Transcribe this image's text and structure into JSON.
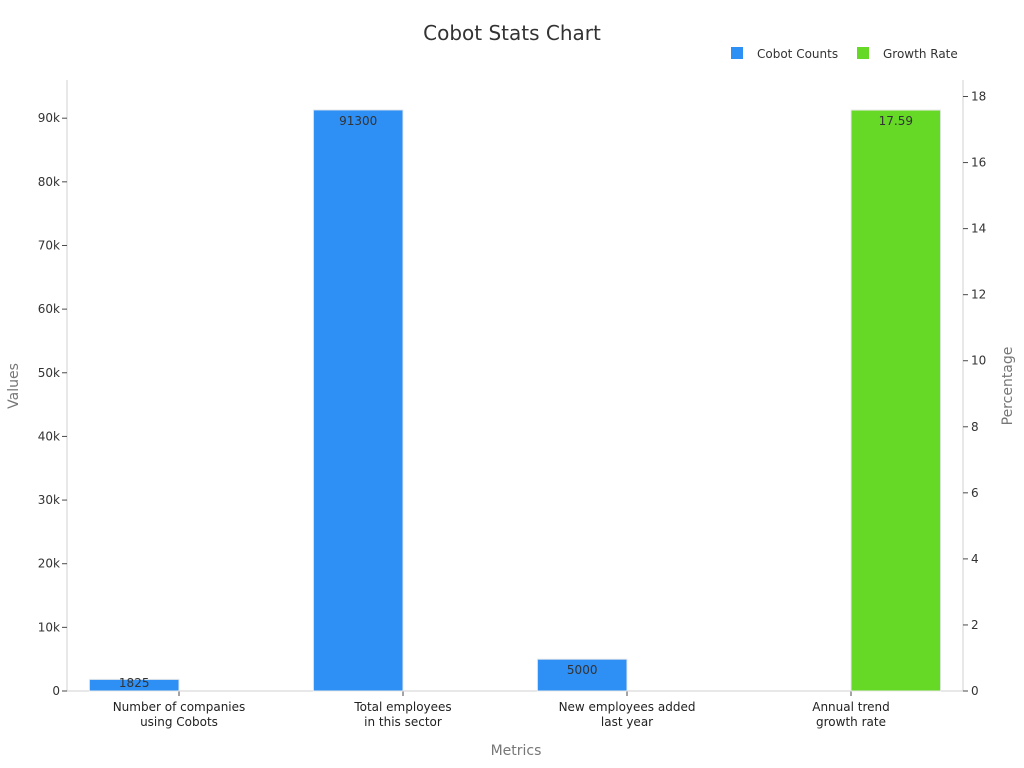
{
  "chart_data": {
    "type": "bar",
    "title": "Cobot Stats Chart",
    "xlabel": "Metrics",
    "ylabel": "Values",
    "y2label": "Percentage",
    "categories": [
      [
        "Number of companies",
        "using Cobots"
      ],
      [
        "Total employees",
        "in this sector"
      ],
      [
        "New employees added",
        "last year"
      ],
      [
        "Annual trend",
        "growth rate"
      ]
    ],
    "series": [
      {
        "name": "Cobot Counts",
        "axis": "left",
        "color": "#2e8ff5",
        "values": [
          1825,
          91300,
          5000,
          null
        ],
        "labels": [
          "1825",
          "91300",
          "5000",
          null
        ]
      },
      {
        "name": "Growth Rate",
        "axis": "right",
        "color": "#66d926",
        "values": [
          null,
          null,
          null,
          17.59
        ],
        "labels": [
          null,
          null,
          null,
          "17.59"
        ]
      }
    ],
    "ylim": [
      0,
      96000
    ],
    "yticks": [
      0,
      10000,
      20000,
      30000,
      40000,
      50000,
      60000,
      70000,
      80000,
      90000
    ],
    "yticklabels": [
      "0",
      "10k",
      "20k",
      "30k",
      "40k",
      "50k",
      "60k",
      "70k",
      "80k",
      "90k"
    ],
    "y2lim": [
      0,
      18.5
    ],
    "y2ticks": [
      0,
      2,
      4,
      6,
      8,
      10,
      12,
      14,
      16,
      18
    ],
    "y2ticklabels": [
      "0",
      "2",
      "4",
      "6",
      "8",
      "10",
      "12",
      "14",
      "16",
      "18"
    ],
    "legend_position": "top-right",
    "grid": false
  }
}
